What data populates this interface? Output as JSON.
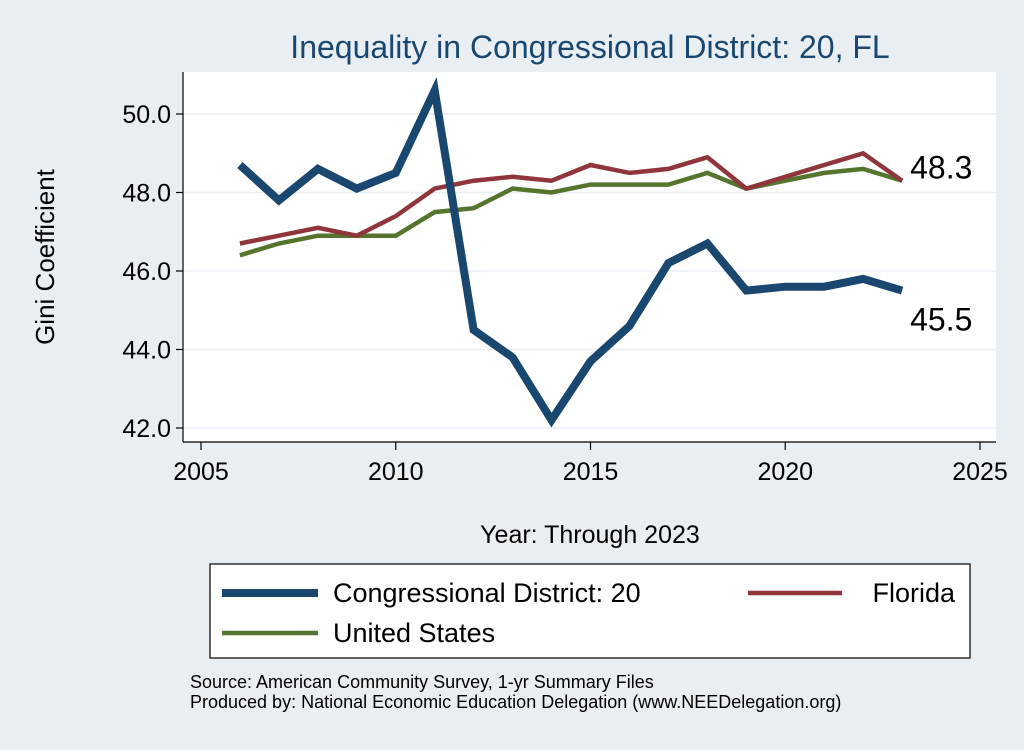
{
  "chart_data": {
    "type": "line",
    "title": "Inequality in Congressional District:  20, FL",
    "xlabel": "Year: Through 2023",
    "ylabel": "Gini Coefficient",
    "xlim": [
      2005,
      2025
    ],
    "ylim": [
      42.0,
      51.0
    ],
    "x_ticks": [
      2005,
      2010,
      2015,
      2020,
      2025
    ],
    "y_ticks": [
      42.0,
      44.0,
      46.0,
      48.0,
      50.0
    ],
    "x_tick_labels": [
      "2005",
      "2010",
      "2015",
      "2020",
      "2025"
    ],
    "y_tick_labels": [
      "42.0",
      "44.0",
      "46.0",
      "48.0",
      "50.0"
    ],
    "grid": "horizontal",
    "legend_position": "bottom",
    "x": [
      2006,
      2007,
      2008,
      2009,
      2010,
      2011,
      2012,
      2013,
      2014,
      2015,
      2016,
      2017,
      2018,
      2019,
      2020,
      2021,
      2022,
      2023
    ],
    "series": [
      {
        "name": "Congressional District:  20",
        "color": "#1a476f",
        "values": [
          48.7,
          47.8,
          48.6,
          48.1,
          48.5,
          50.6,
          44.5,
          43.8,
          42.2,
          43.7,
          44.6,
          46.2,
          46.7,
          45.5,
          45.6,
          45.6,
          45.8,
          45.5
        ]
      },
      {
        "name": "Florida",
        "color": "#90353b",
        "values": [
          46.7,
          46.9,
          47.1,
          46.9,
          47.4,
          48.1,
          48.3,
          48.4,
          48.3,
          48.7,
          48.5,
          48.6,
          48.9,
          48.1,
          48.4,
          48.7,
          49.0,
          48.3
        ]
      },
      {
        "name": "United States",
        "color": "#55752f",
        "values": [
          46.4,
          46.7,
          46.9,
          46.9,
          46.9,
          47.5,
          47.6,
          48.1,
          48.0,
          48.2,
          48.2,
          48.2,
          48.5,
          48.1,
          48.3,
          48.5,
          48.6,
          48.3
        ]
      }
    ],
    "end_labels": [
      {
        "series": "Florida",
        "text": "48.3"
      },
      {
        "series": "Congressional District:  20",
        "text": "45.5"
      }
    ]
  },
  "notes": {
    "source": "Source: American Community Survey, 1-yr Summary Files",
    "produced_by": "Produced by: National Economic Education Delegation (www.NEEDelegation.org)"
  }
}
